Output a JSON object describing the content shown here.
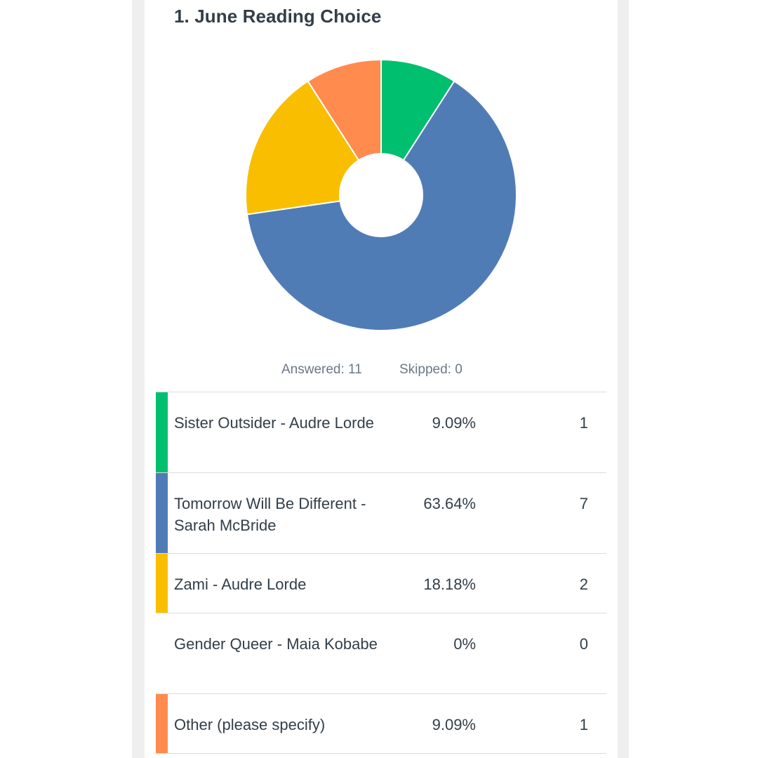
{
  "question": {
    "title": "1. June Reading Choice"
  },
  "stats": {
    "answered": "Answered: 11",
    "skipped": "Skipped: 0"
  },
  "chart_data": {
    "type": "pie",
    "style": "donut",
    "labels": [
      "Sister Outsider - Audre Lorde",
      "Tomorrow Will Be Different - Sarah McBride",
      "Zami - Audre Lorde",
      "Gender Queer - Maia Kobabe",
      "Other (please specify)"
    ],
    "values": [
      1,
      7,
      2,
      0,
      1
    ],
    "percentages": [
      9.09,
      63.64,
      18.18,
      0,
      9.09
    ],
    "colors": [
      "#00bf6f",
      "#507cb6",
      "#f9be00",
      "#ffffff",
      "#ff8b4f"
    ],
    "legend": "table-below"
  },
  "rows": [
    {
      "choice": "Sister Outsider - Audre Lorde",
      "percent": "9.09%",
      "count": "1",
      "color": "#00bf6f"
    },
    {
      "choice": "Tomorrow Will Be Different - Sarah McBride",
      "percent": "63.64%",
      "count": "7",
      "color": "#507cb6"
    },
    {
      "choice": "Zami - Audre Lorde",
      "percent": "18.18%",
      "count": "2",
      "color": "#f9be00"
    },
    {
      "choice": "Gender Queer - Maia Kobabe",
      "percent": "0%",
      "count": "0",
      "color": ""
    },
    {
      "choice": "Other (please specify)",
      "percent": "9.09%",
      "count": "1",
      "color": "#ff8b4f"
    }
  ]
}
